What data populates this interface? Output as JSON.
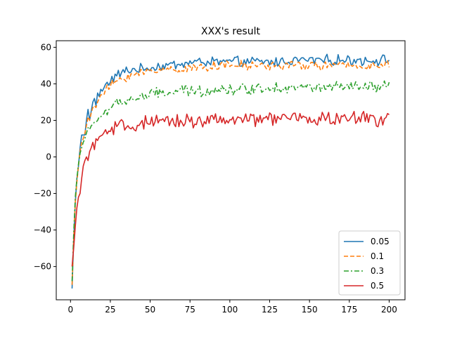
{
  "chart_data": {
    "type": "line",
    "title": "XXX's result",
    "xlabel": "",
    "ylabel": "",
    "xlim": [
      -8.95,
      209.95
    ],
    "ylim": [
      -78.2,
      63.6
    ],
    "x_ticks": [
      0,
      25,
      50,
      75,
      100,
      125,
      150,
      175,
      200
    ],
    "y_ticks": [
      -60,
      -40,
      -20,
      0,
      20,
      40,
      60
    ],
    "x_tick_labels": [
      "0",
      "25",
      "50",
      "75",
      "100",
      "125",
      "150",
      "175",
      "200"
    ],
    "y_tick_labels": [
      "−60",
      "−40",
      "−20",
      "0",
      "20",
      "40",
      "60"
    ],
    "legend_position": "lower-right",
    "grid": false,
    "series": [
      {
        "name": "0.05",
        "color": "#1f77b4",
        "dash": "solid",
        "start": 1,
        "end": 200,
        "step": 1,
        "anchors": [
          [
            1,
            -72
          ],
          [
            2,
            -45
          ],
          [
            3,
            -25
          ],
          [
            4,
            -12
          ],
          [
            5,
            -5
          ],
          [
            6,
            5
          ],
          [
            7,
            12
          ],
          [
            8,
            12
          ],
          [
            9,
            12
          ],
          [
            10,
            20
          ],
          [
            11,
            26
          ],
          [
            12,
            20
          ],
          [
            13,
            25
          ],
          [
            14,
            30
          ],
          [
            15,
            32
          ],
          [
            16,
            28
          ],
          [
            17,
            35
          ],
          [
            18,
            33
          ],
          [
            19,
            37
          ],
          [
            20,
            36
          ],
          [
            22,
            39
          ],
          [
            25,
            42
          ],
          [
            30,
            45
          ],
          [
            35,
            47
          ],
          [
            40,
            48
          ],
          [
            45,
            48
          ],
          [
            50,
            49
          ],
          [
            60,
            50
          ],
          [
            70,
            51
          ],
          [
            80,
            52
          ],
          [
            90,
            52
          ],
          [
            100,
            52
          ],
          [
            110,
            52
          ],
          [
            120,
            52
          ],
          [
            130,
            52
          ],
          [
            140,
            53
          ],
          [
            150,
            53
          ],
          [
            160,
            53
          ],
          [
            170,
            53
          ],
          [
            180,
            53
          ],
          [
            190,
            53
          ],
          [
            200,
            53
          ]
        ],
        "noise": 2.2
      },
      {
        "name": "0.1",
        "color": "#ff7f0e",
        "dash": "dashed",
        "start": 1,
        "end": 200,
        "step": 1,
        "anchors": [
          [
            1,
            -70
          ],
          [
            2,
            -45
          ],
          [
            3,
            -25
          ],
          [
            4,
            -14
          ],
          [
            5,
            -5
          ],
          [
            6,
            3
          ],
          [
            7,
            8
          ],
          [
            8,
            10
          ],
          [
            9,
            13
          ],
          [
            10,
            17
          ],
          [
            11,
            22
          ],
          [
            12,
            20
          ],
          [
            13,
            24
          ],
          [
            14,
            27
          ],
          [
            15,
            28
          ],
          [
            16,
            27
          ],
          [
            17,
            30
          ],
          [
            18,
            32
          ],
          [
            19,
            34
          ],
          [
            20,
            34
          ],
          [
            22,
            36
          ],
          [
            25,
            39
          ],
          [
            30,
            42
          ],
          [
            35,
            44
          ],
          [
            40,
            45
          ],
          [
            45,
            46
          ],
          [
            50,
            47
          ],
          [
            60,
            48
          ],
          [
            70,
            48
          ],
          [
            80,
            49
          ],
          [
            90,
            50
          ],
          [
            100,
            50
          ],
          [
            110,
            50
          ],
          [
            120,
            50
          ],
          [
            130,
            50
          ],
          [
            140,
            50
          ],
          [
            150,
            50
          ],
          [
            160,
            50
          ],
          [
            170,
            50
          ],
          [
            180,
            50
          ],
          [
            190,
            50
          ],
          [
            200,
            50
          ]
        ],
        "noise": 2.0
      },
      {
        "name": "0.3",
        "color": "#2ca02c",
        "dash": "dashdot",
        "start": 1,
        "end": 200,
        "step": 1,
        "anchors": [
          [
            1,
            -68
          ],
          [
            2,
            -42
          ],
          [
            3,
            -22
          ],
          [
            4,
            -12
          ],
          [
            5,
            -4
          ],
          [
            6,
            2
          ],
          [
            7,
            5
          ],
          [
            8,
            8
          ],
          [
            9,
            10
          ],
          [
            10,
            13
          ],
          [
            11,
            16
          ],
          [
            12,
            15
          ],
          [
            13,
            17
          ],
          [
            14,
            18
          ],
          [
            15,
            19
          ],
          [
            16,
            19
          ],
          [
            17,
            20
          ],
          [
            18,
            22
          ],
          [
            19,
            22
          ],
          [
            20,
            23
          ],
          [
            22,
            25
          ],
          [
            25,
            27
          ],
          [
            30,
            29
          ],
          [
            35,
            31
          ],
          [
            40,
            32
          ],
          [
            45,
            33
          ],
          [
            50,
            34
          ],
          [
            60,
            35
          ],
          [
            70,
            36
          ],
          [
            80,
            36
          ],
          [
            90,
            37
          ],
          [
            100,
            37
          ],
          [
            110,
            37
          ],
          [
            120,
            38
          ],
          [
            130,
            38
          ],
          [
            140,
            38
          ],
          [
            150,
            38
          ],
          [
            160,
            38
          ],
          [
            170,
            38
          ],
          [
            180,
            38
          ],
          [
            190,
            38
          ],
          [
            200,
            38
          ]
        ],
        "noise": 2.6
      },
      {
        "name": "0.5",
        "color": "#d62728",
        "dash": "solid",
        "start": 1,
        "end": 200,
        "step": 1,
        "anchors": [
          [
            1,
            -60
          ],
          [
            2,
            -50
          ],
          [
            3,
            -38
          ],
          [
            4,
            -28
          ],
          [
            5,
            -22
          ],
          [
            6,
            -20
          ],
          [
            7,
            -12
          ],
          [
            8,
            -5
          ],
          [
            9,
            -2
          ],
          [
            10,
            0
          ],
          [
            11,
            -2
          ],
          [
            12,
            3
          ],
          [
            13,
            5
          ],
          [
            14,
            8
          ],
          [
            15,
            4
          ],
          [
            16,
            10
          ],
          [
            17,
            9
          ],
          [
            18,
            11
          ],
          [
            20,
            12
          ],
          [
            22,
            13
          ],
          [
            25,
            14
          ],
          [
            30,
            16
          ],
          [
            35,
            17
          ],
          [
            40,
            17
          ],
          [
            45,
            18
          ],
          [
            50,
            18
          ],
          [
            60,
            19
          ],
          [
            70,
            20
          ],
          [
            80,
            20
          ],
          [
            90,
            20
          ],
          [
            100,
            20
          ],
          [
            110,
            20
          ],
          [
            120,
            21
          ],
          [
            130,
            21
          ],
          [
            140,
            21
          ],
          [
            150,
            21
          ],
          [
            160,
            21
          ],
          [
            170,
            21
          ],
          [
            180,
            21
          ],
          [
            190,
            21
          ],
          [
            200,
            21
          ]
        ],
        "noise": 3.2
      }
    ]
  }
}
